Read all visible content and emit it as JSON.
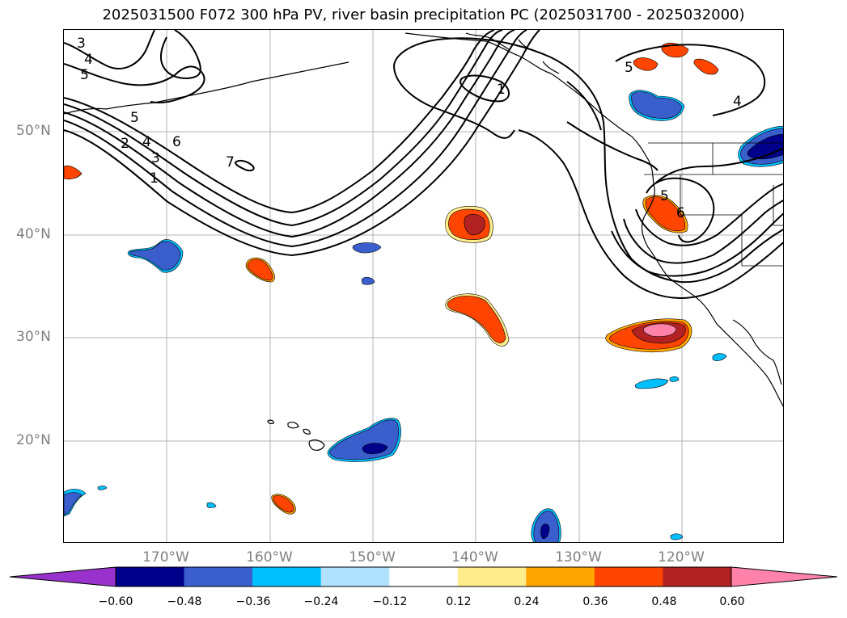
{
  "title": "2025031500 F072 300 hPa PV, river basin precipitation PC (2025031700 - 2025032000)",
  "latitude_labels": [
    "50°N",
    "40°N",
    "30°N",
    "20°N"
  ],
  "longitude_labels": [
    "170°W",
    "160°W",
    "150°W",
    "140°W",
    "130°W",
    "120°W"
  ],
  "contour_labels": [
    "3",
    "4",
    "5",
    "5",
    "2",
    "4",
    "3",
    "1",
    "6",
    "7",
    "1",
    "5",
    "4",
    "5",
    "6"
  ],
  "colorbar": {
    "tick_labels": [
      "−0.60",
      "−0.48",
      "−0.36",
      "−0.24",
      "−0.12",
      "0.12",
      "0.24",
      "0.36",
      "0.48",
      "0.60"
    ],
    "colors": [
      "#9932cc",
      "#00008b",
      "#3a5fcd",
      "#00bfff",
      "#b0e2ff",
      "#ffffff",
      "#ffec8b",
      "#ffa500",
      "#ff4500",
      "#b22222",
      "#ff82ab"
    ],
    "extend": "both"
  },
  "map": {
    "projection": "cylindrical",
    "lon_range": [
      -180,
      -110
    ],
    "lat_range": [
      10,
      60
    ],
    "gridlines": true
  }
}
